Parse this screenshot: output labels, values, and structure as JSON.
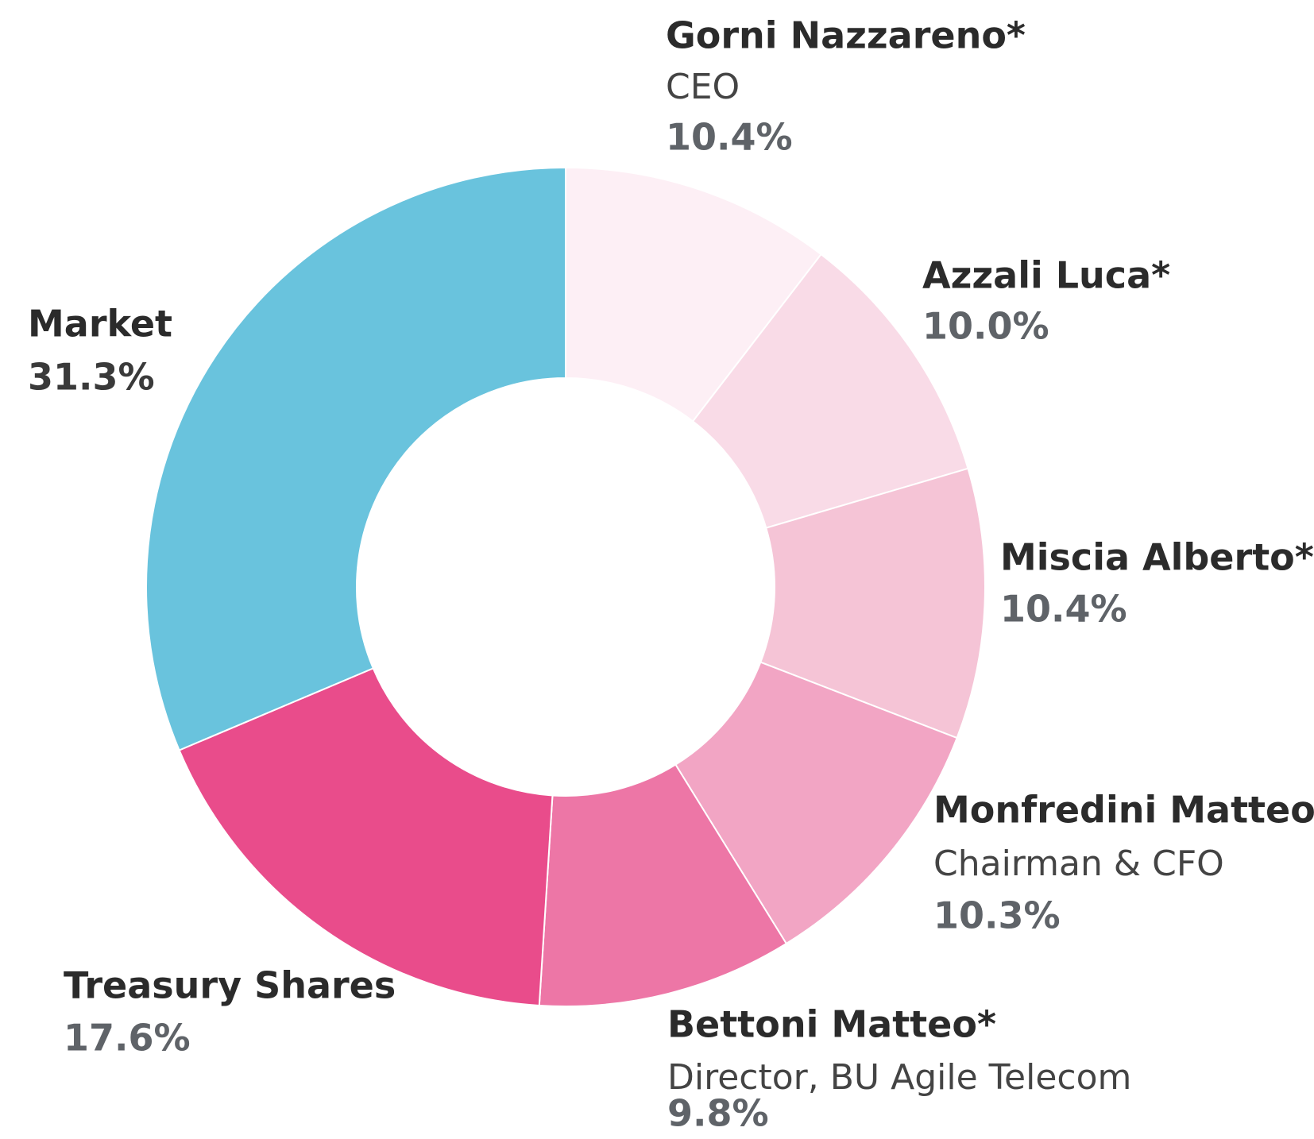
{
  "chart_data": {
    "type": "donut",
    "categories": [
      "Gorni Nazzareno*",
      "Azzali Luca*",
      "Miscia Alberto*",
      "Monfredini Matteo*",
      "Bettoni Matteo*",
      "Treasury Shares",
      "Market"
    ],
    "roles": [
      "CEO",
      null,
      null,
      "Chairman & CFO",
      "Director, BU Agile Telecom",
      null,
      null
    ],
    "values": [
      10.4,
      10.0,
      10.4,
      10.3,
      9.8,
      17.6,
      31.3
    ],
    "value_labels": [
      "10.4%",
      "10.0%",
      "10.4%",
      "10.3%",
      "9.8%",
      "17.6%",
      "31.3%"
    ],
    "colors": [
      "#fdeff5",
      "#f9dbe7",
      "#f5c4d6",
      "#f2a5c4",
      "#ed76a6",
      "#e94c8b",
      "#69c3dd"
    ]
  }
}
